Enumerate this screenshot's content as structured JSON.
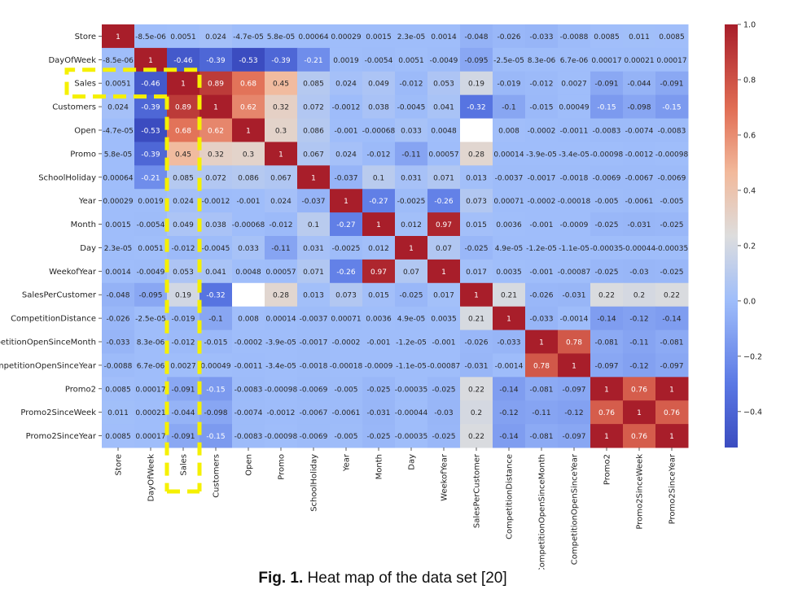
{
  "chart_data": {
    "type": "heatmap",
    "title": "",
    "labels": [
      "Store",
      "DayOfWeek",
      "Sales",
      "Customers",
      "Open",
      "Promo",
      "SchoolHoliday",
      "Year",
      "Month",
      "Day",
      "WeekofYear",
      "SalesPerCustomer",
      "CompetitionDistance",
      "CompetitionOpenSinceMonth",
      "CompetitionOpenSinceYear",
      "Promo2",
      "Promo2SinceWeek",
      "Promo2SinceYear"
    ],
    "matrix": [
      [
        1,
        -8.5e-06,
        0.0051,
        0.024,
        -4.7e-05,
        5.8e-05,
        0.00064,
        0.00029,
        0.0015,
        2.3e-05,
        0.0014,
        -0.048,
        -0.026,
        -0.033,
        -0.0088,
        0.0085,
        0.011,
        0.0085
      ],
      [
        -8.5e-06,
        1,
        -0.46,
        -0.39,
        -0.53,
        -0.39,
        -0.21,
        0.0019,
        -0.0054,
        0.0051,
        -0.0049,
        -0.095,
        -2.5e-05,
        8.3e-06,
        6.7e-06,
        0.00017,
        0.00021,
        0.00017
      ],
      [
        0.0051,
        -0.46,
        1,
        0.89,
        0.68,
        0.45,
        0.085,
        0.024,
        0.049,
        -0.012,
        0.053,
        0.19,
        -0.019,
        -0.012,
        0.0027,
        -0.091,
        -0.044,
        -0.091
      ],
      [
        0.024,
        -0.39,
        0.89,
        1,
        0.62,
        0.32,
        0.072,
        -0.0012,
        0.038,
        -0.0045,
        0.041,
        -0.32,
        -0.1,
        -0.015,
        0.00049,
        -0.15,
        -0.098,
        -0.15
      ],
      [
        -4.7e-05,
        -0.53,
        0.68,
        0.62,
        1,
        0.3,
        0.086,
        -0.001,
        -0.00068,
        0.033,
        0.0048,
        null,
        0.008,
        -0.0002,
        -0.0011,
        -0.0083,
        -0.0074,
        -0.0083
      ],
      [
        5.8e-05,
        -0.39,
        0.45,
        0.32,
        0.3,
        1,
        0.067,
        0.024,
        -0.012,
        -0.11,
        0.00057,
        0.28,
        0.00014,
        -3.9e-05,
        -3.4e-05,
        -0.00098,
        -0.0012,
        -0.00098
      ],
      [
        0.00064,
        -0.21,
        0.085,
        0.072,
        0.086,
        0.067,
        1,
        -0.037,
        0.1,
        0.031,
        0.071,
        0.013,
        -0.0037,
        -0.0017,
        -0.0018,
        -0.0069,
        -0.0067,
        -0.0069
      ],
      [
        0.00029,
        0.0019,
        0.024,
        -0.0012,
        -0.001,
        0.024,
        -0.037,
        1,
        -0.27,
        -0.0025,
        -0.26,
        0.073,
        0.00071,
        -0.0002,
        -0.00018,
        -0.005,
        -0.0061,
        -0.005
      ],
      [
        0.0015,
        -0.0054,
        0.049,
        0.038,
        -0.00068,
        -0.012,
        0.1,
        -0.27,
        1,
        0.012,
        0.97,
        0.015,
        0.0036,
        -0.001,
        -0.0009,
        -0.025,
        -0.031,
        -0.025
      ],
      [
        2.3e-05,
        0.0051,
        -0.012,
        -0.0045,
        0.033,
        -0.11,
        0.031,
        -0.0025,
        0.012,
        1,
        0.07,
        -0.025,
        4.9e-05,
        -1.2e-05,
        -1.1e-05,
        -0.00035,
        -0.00044,
        -0.00035
      ],
      [
        0.0014,
        -0.0049,
        0.053,
        0.041,
        0.0048,
        0.00057,
        0.071,
        -0.26,
        0.97,
        0.07,
        1,
        0.017,
        0.0035,
        -0.001,
        -0.00087,
        -0.025,
        -0.03,
        -0.025
      ],
      [
        -0.048,
        -0.095,
        0.19,
        -0.32,
        null,
        0.28,
        0.013,
        0.073,
        0.015,
        -0.025,
        0.017,
        1,
        0.21,
        -0.026,
        -0.031,
        0.22,
        0.2,
        0.22
      ],
      [
        -0.026,
        -2.5e-05,
        -0.019,
        -0.1,
        0.008,
        0.00014,
        -0.0037,
        0.00071,
        0.0036,
        4.9e-05,
        0.0035,
        0.21,
        1,
        -0.033,
        -0.0014,
        -0.14,
        -0.12,
        -0.14
      ],
      [
        -0.033,
        8.3e-06,
        -0.012,
        -0.015,
        -0.0002,
        -3.9e-05,
        -0.0017,
        -0.0002,
        -0.001,
        -1.2e-05,
        -0.001,
        -0.026,
        -0.033,
        1,
        0.78,
        -0.081,
        -0.11,
        -0.081
      ],
      [
        -0.0088,
        6.7e-06,
        0.0027,
        0.00049,
        -0.0011,
        -3.4e-05,
        -0.0018,
        -0.00018,
        -0.0009,
        -1.1e-05,
        -0.00087,
        -0.031,
        -0.0014,
        0.78,
        1,
        -0.097,
        -0.12,
        -0.097
      ],
      [
        0.0085,
        0.00017,
        -0.091,
        -0.15,
        -0.0083,
        -0.00098,
        -0.0069,
        -0.005,
        -0.025,
        -0.00035,
        -0.025,
        0.22,
        -0.14,
        -0.081,
        -0.097,
        1,
        0.76,
        1
      ],
      [
        0.011,
        0.00021,
        -0.044,
        -0.098,
        -0.0074,
        -0.0012,
        -0.0067,
        -0.0061,
        -0.031,
        -0.00044,
        -0.03,
        0.2,
        -0.12,
        -0.11,
        -0.12,
        0.76,
        1,
        0.76
      ],
      [
        0.0085,
        0.00017,
        -0.091,
        -0.15,
        -0.0083,
        -0.00098,
        -0.0069,
        -0.005,
        -0.025,
        -0.00035,
        -0.025,
        0.22,
        -0.14,
        -0.081,
        -0.097,
        1,
        0.76,
        1
      ]
    ],
    "colormap": "coolwarm",
    "vmin": -0.53,
    "vmax": 1.0,
    "colorbar_ticks": [
      "1.0",
      "0.8",
      "0.6",
      "0.4",
      "0.2",
      "0.0",
      "−0.2",
      "−0.4"
    ],
    "colorbar_tick_values": [
      1.0,
      0.8,
      0.6,
      0.4,
      0.2,
      0.0,
      -0.2,
      -0.4
    ],
    "highlight": "Sales",
    "highlight_color": "#f5f000"
  },
  "caption": {
    "prefix": "Fig. 1.",
    "text": " Heat map of the data set [20]"
  }
}
